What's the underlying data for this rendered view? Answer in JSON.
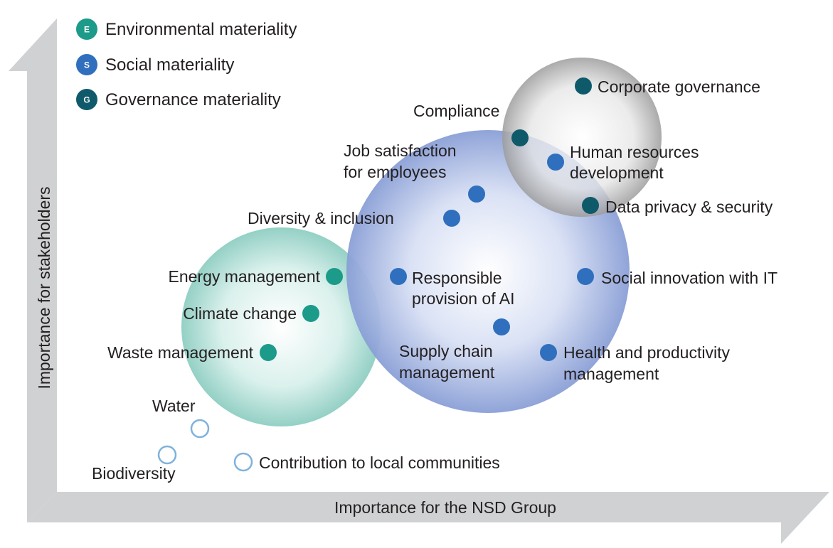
{
  "colors": {
    "environmental": "#1c9a8a",
    "social": "#2f6fbd",
    "governance": "#0e5a6b",
    "open_marker": "#7fb2dc",
    "axis_band": "#d0d1d3"
  },
  "legend": [
    {
      "badge": "E",
      "label": "Environmental materiality",
      "category": "environmental"
    },
    {
      "badge": "S",
      "label": "Social materiality",
      "category": "social"
    },
    {
      "badge": "G",
      "label": "Governance materiality",
      "category": "governance"
    }
  ],
  "axes": {
    "x_label": "Importance for the NSD Group",
    "y_label": "Importance for stakeholders"
  },
  "items": [
    {
      "lines": [
        "Corporate governance"
      ],
      "category": "governance"
    },
    {
      "lines": [
        "Compliance"
      ],
      "category": "governance"
    },
    {
      "lines": [
        "Human resources",
        "development"
      ],
      "category": "social"
    },
    {
      "lines": [
        "Data privacy & security"
      ],
      "category": "governance"
    },
    {
      "lines": [
        "Job satisfaction",
        "for employees"
      ],
      "category": "social"
    },
    {
      "lines": [
        "Diversity & inclusion"
      ],
      "category": "social"
    },
    {
      "lines": [
        "Responsible",
        "provision of AI"
      ],
      "category": "social"
    },
    {
      "lines": [
        "Social innovation with IT"
      ],
      "category": "social"
    },
    {
      "lines": [
        "Supply chain",
        "management"
      ],
      "category": "social"
    },
    {
      "lines": [
        "Health and productivity",
        "management"
      ],
      "category": "social"
    },
    {
      "lines": [
        "Energy management"
      ],
      "category": "environmental"
    },
    {
      "lines": [
        "Climate change"
      ],
      "category": "environmental"
    },
    {
      "lines": [
        "Waste management"
      ],
      "category": "environmental"
    },
    {
      "lines": [
        "Water"
      ],
      "category": "open"
    },
    {
      "lines": [
        "Biodiversity"
      ],
      "category": "open"
    },
    {
      "lines": [
        "Contribution to local communities"
      ],
      "category": "open"
    }
  ]
}
